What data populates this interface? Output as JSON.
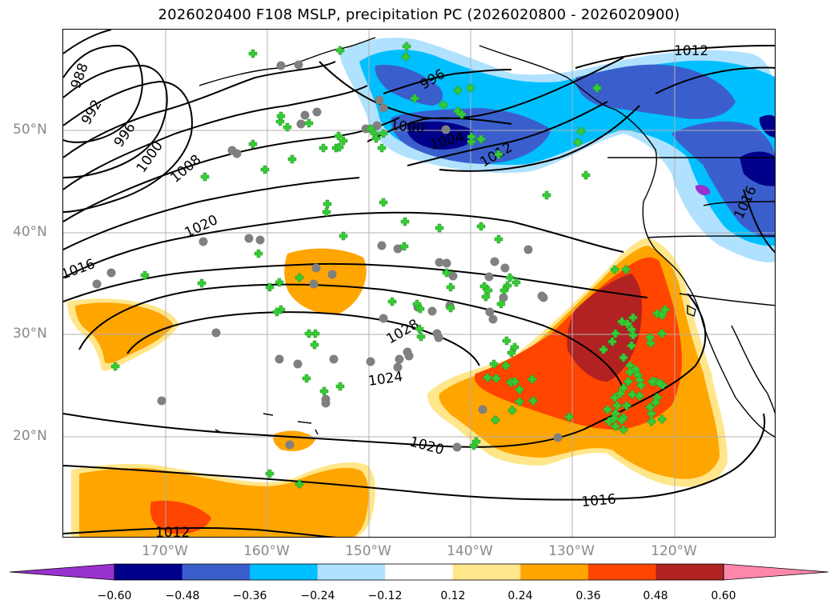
{
  "title": "2026020400 F108 MSLP, precipitation PC (2026020800 - 2026020900)",
  "lat_labels": [
    "50°N",
    "40°N",
    "30°N",
    "20°N"
  ],
  "lon_labels": [
    "170°W",
    "160°W",
    "150°W",
    "140°W",
    "130°W",
    "120°W"
  ],
  "contour_labels": [
    "988",
    "992",
    "996",
    "1000",
    "1008",
    "1016",
    "1020",
    "1024",
    "1028",
    "1020",
    "1016",
    "1012",
    "996",
    "1000",
    "1004",
    "1012",
    "1012",
    "1016"
  ],
  "colorbar": {
    "tick_labels": [
      "−0.60",
      "−0.48",
      "−0.36",
      "−0.24",
      "−0.12",
      "0.12",
      "0.24",
      "0.36",
      "0.48",
      "0.60"
    ],
    "colors": [
      "#9932cc",
      "#00008b",
      "#3a5fcd",
      "#00bfff",
      "#b0e2ff",
      "#ffffff",
      "#ffe68a",
      "#ffa500",
      "#ff4500",
      "#b22222",
      "#ff88aa"
    ]
  },
  "colors": {
    "land_outline": "#000000",
    "station_marker": "#32cd32",
    "station_ring": "#808080",
    "grid": "#b0b0b0"
  }
}
